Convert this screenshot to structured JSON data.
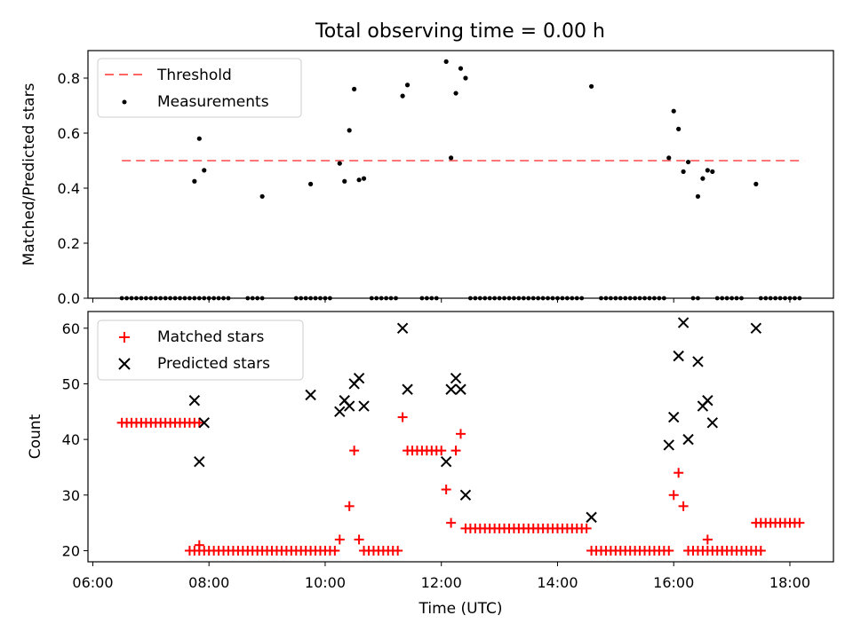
{
  "chart_data": [
    {
      "type": "scatter",
      "title": "Total observing time = 0.00 h",
      "ylabel": "Matched/Predicted stars",
      "ylim": [
        0,
        0.9
      ],
      "yticks": [
        0.0,
        0.2,
        0.4,
        0.6,
        0.8
      ],
      "ytick_labels": [
        "0.0",
        "0.2",
        "0.4",
        "0.6",
        "0.8"
      ],
      "threshold": {
        "name": "Threshold",
        "value": 0.5,
        "x": [
          "06:30",
          "18:15"
        ],
        "color": "#ff6666"
      },
      "series": [
        {
          "name": "Measurements",
          "color": "#000000",
          "zero_runs": [
            [
              "06:30",
              "08:20"
            ],
            [
              "08:40",
              "08:55"
            ],
            [
              "09:30",
              "10:05"
            ],
            [
              "10:48",
              "11:15"
            ],
            [
              "11:40",
              "11:58"
            ],
            [
              "12:30",
              "14:25"
            ],
            [
              "14:45",
              "15:50"
            ],
            [
              "16:20",
              "16:25"
            ],
            [
              "16:45",
              "17:10"
            ],
            [
              "17:30",
              "18:10"
            ]
          ],
          "points": [
            {
              "x": "07:45",
              "y": 0.425
            },
            {
              "x": "07:50",
              "y": 0.58
            },
            {
              "x": "07:55",
              "y": 0.465
            },
            {
              "x": "08:55",
              "y": 0.37
            },
            {
              "x": "09:45",
              "y": 0.415
            },
            {
              "x": "10:15",
              "y": 0.49
            },
            {
              "x": "10:20",
              "y": 0.425
            },
            {
              "x": "10:25",
              "y": 0.61
            },
            {
              "x": "10:30",
              "y": 0.76
            },
            {
              "x": "10:35",
              "y": 0.43
            },
            {
              "x": "10:40",
              "y": 0.435
            },
            {
              "x": "11:20",
              "y": 0.735
            },
            {
              "x": "11:25",
              "y": 0.775
            },
            {
              "x": "12:05",
              "y": 0.86
            },
            {
              "x": "12:10",
              "y": 0.51
            },
            {
              "x": "12:15",
              "y": 0.745
            },
            {
              "x": "12:20",
              "y": 0.835
            },
            {
              "x": "12:25",
              "y": 0.8
            },
            {
              "x": "14:35",
              "y": 0.77
            },
            {
              "x": "15:55",
              "y": 0.51
            },
            {
              "x": "16:00",
              "y": 0.68
            },
            {
              "x": "16:05",
              "y": 0.615
            },
            {
              "x": "16:10",
              "y": 0.46
            },
            {
              "x": "16:15",
              "y": 0.495
            },
            {
              "x": "16:25",
              "y": 0.37
            },
            {
              "x": "16:30",
              "y": 0.435
            },
            {
              "x": "16:35",
              "y": 0.465
            },
            {
              "x": "16:40",
              "y": 0.46
            },
            {
              "x": "17:25",
              "y": 0.415
            }
          ]
        }
      ],
      "legend": {
        "placement": "upper-left",
        "entries": [
          "Threshold",
          "Measurements"
        ]
      }
    },
    {
      "type": "scatter",
      "xlabel": "Time (UTC)",
      "ylabel": "Count",
      "ylim": [
        18,
        63
      ],
      "yticks": [
        20,
        30,
        40,
        50,
        60
      ],
      "ytick_labels": [
        "20",
        "30",
        "40",
        "50",
        "60"
      ],
      "xlim": [
        "05:55",
        "18:45"
      ],
      "xticks": [
        "06:00",
        "08:00",
        "10:00",
        "12:00",
        "14:00",
        "16:00",
        "18:00"
      ],
      "series": [
        {
          "name": "Matched stars",
          "marker": "+",
          "color": "#ff0000",
          "runs": [
            {
              "from": "06:30",
              "to": "07:50",
              "y": 43
            },
            {
              "from": "07:40",
              "to": "10:10",
              "y": 20
            },
            {
              "from": "10:40",
              "to": "11:15",
              "y": 20
            },
            {
              "from": "11:25",
              "to": "12:00",
              "y": 38
            },
            {
              "from": "12:25",
              "to": "14:30",
              "y": 24
            },
            {
              "from": "14:35",
              "to": "15:55",
              "y": 20
            },
            {
              "from": "16:15",
              "to": "16:50",
              "y": 20
            },
            {
              "from": "16:50",
              "to": "17:30",
              "y": 20
            },
            {
              "from": "17:25",
              "to": "18:10",
              "y": 25
            }
          ],
          "points": [
            {
              "x": "07:50",
              "y": 21
            },
            {
              "x": "10:15",
              "y": 22
            },
            {
              "x": "10:25",
              "y": 28
            },
            {
              "x": "10:30",
              "y": 38
            },
            {
              "x": "10:35",
              "y": 22
            },
            {
              "x": "11:20",
              "y": 44
            },
            {
              "x": "12:05",
              "y": 31
            },
            {
              "x": "12:10",
              "y": 25
            },
            {
              "x": "12:15",
              "y": 38
            },
            {
              "x": "12:20",
              "y": 41
            },
            {
              "x": "16:00",
              "y": 30
            },
            {
              "x": "16:05",
              "y": 34
            },
            {
              "x": "16:10",
              "y": 28
            },
            {
              "x": "16:35",
              "y": 22
            }
          ]
        },
        {
          "name": "Predicted stars",
          "marker": "x",
          "color": "#000000",
          "points": [
            {
              "x": "07:45",
              "y": 47
            },
            {
              "x": "07:50",
              "y": 36
            },
            {
              "x": "07:55",
              "y": 43
            },
            {
              "x": "09:45",
              "y": 48
            },
            {
              "x": "10:15",
              "y": 45
            },
            {
              "x": "10:20",
              "y": 47
            },
            {
              "x": "10:25",
              "y": 46
            },
            {
              "x": "10:30",
              "y": 50
            },
            {
              "x": "10:35",
              "y": 51
            },
            {
              "x": "10:40",
              "y": 46
            },
            {
              "x": "11:20",
              "y": 60
            },
            {
              "x": "11:25",
              "y": 49
            },
            {
              "x": "12:05",
              "y": 36
            },
            {
              "x": "12:10",
              "y": 49
            },
            {
              "x": "12:15",
              "y": 51
            },
            {
              "x": "12:20",
              "y": 49
            },
            {
              "x": "12:25",
              "y": 30
            },
            {
              "x": "14:35",
              "y": 26
            },
            {
              "x": "15:55",
              "y": 39
            },
            {
              "x": "16:00",
              "y": 44
            },
            {
              "x": "16:05",
              "y": 55
            },
            {
              "x": "16:10",
              "y": 61
            },
            {
              "x": "16:15",
              "y": 40
            },
            {
              "x": "16:25",
              "y": 54
            },
            {
              "x": "16:30",
              "y": 46
            },
            {
              "x": "16:35",
              "y": 47
            },
            {
              "x": "16:40",
              "y": 43
            },
            {
              "x": "17:25",
              "y": 60
            }
          ]
        }
      ],
      "legend": {
        "placement": "upper-left",
        "entries": [
          "Matched stars",
          "Predicted stars"
        ]
      }
    }
  ]
}
